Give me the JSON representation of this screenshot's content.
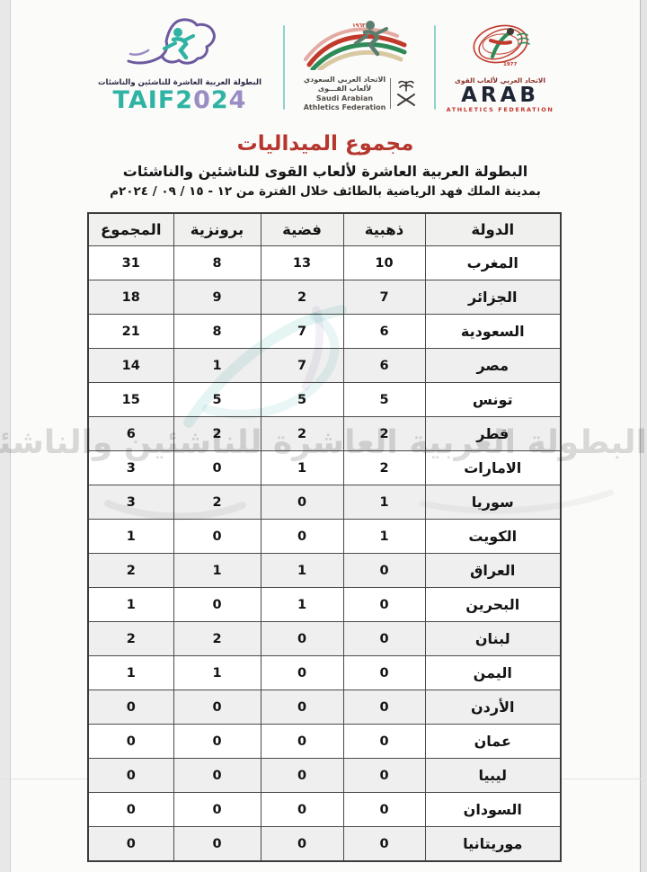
{
  "document": {
    "title": "مجموع الميداليات",
    "subtitle": "البطولة العربية العاشرة لألعاب القوى للناشئين والناشئات",
    "venue_date_line": "بمدينة الملك فهد الرياضية بالطائف خلال الفترة من ١٢ - ١٥ / ٠٩ / ٢٠٢٤م",
    "title_color": "#b5362d"
  },
  "logos": {
    "taif": {
      "tagline": "البطولة العربية العاشرة للناشئين والناشئات",
      "wordmark": "TAIF2024",
      "wordmark_letters": [
        {
          "char": "T",
          "color": "#2fb3a3"
        },
        {
          "char": "A",
          "color": "#2fb3a3"
        },
        {
          "char": "I",
          "color": "#2fb3a3"
        },
        {
          "char": "F",
          "color": "#2fb3a3"
        },
        {
          "char": "2",
          "color": "#2fb3a3"
        },
        {
          "char": "0",
          "color": "#9b8cc4"
        },
        {
          "char": "2",
          "color": "#2fb3a3"
        },
        {
          "char": "4",
          "color": "#9b8cc4"
        }
      ],
      "teal": "#2fb3a3",
      "purple": "#7f6aaa"
    },
    "saudi_athletics_federation": {
      "arabic_line1": "الاتحاد العربي السعودي",
      "arabic_line2": "لألعاب القـــوى",
      "english_line1": "Saudi Arabian",
      "english_line2": "Athletics Federation"
    },
    "arab_athletics_federation": {
      "arabic_line": "الاتحاد العربي لألعاب القوى",
      "wordmark": "ARAB",
      "sub_wordmark": "ATHLETICS FEDERATION",
      "accent_red": "#c2352b",
      "navy": "#1d2433"
    }
  },
  "watermark_text": "البطولة العربية العاشرة للناشئين والناشئات",
  "medal_table": {
    "headers": {
      "country": "الدولة",
      "gold": "ذهبية",
      "silver": "فضية",
      "bronze": "برونزية",
      "total": "المجموع"
    },
    "rows": [
      {
        "country": "المغرب",
        "gold": "10",
        "silver": "13",
        "bronze": "8",
        "total": "31"
      },
      {
        "country": "الجزائر",
        "gold": "7",
        "silver": "2",
        "bronze": "9",
        "total": "18"
      },
      {
        "country": "السعودية",
        "gold": "6",
        "silver": "7",
        "bronze": "8",
        "total": "21"
      },
      {
        "country": "مصر",
        "gold": "6",
        "silver": "7",
        "bronze": "1",
        "total": "14"
      },
      {
        "country": "تونس",
        "gold": "5",
        "silver": "5",
        "bronze": "5",
        "total": "15"
      },
      {
        "country": "قطر",
        "gold": "2",
        "silver": "2",
        "bronze": "2",
        "total": "6"
      },
      {
        "country": "الامارات",
        "gold": "2",
        "silver": "1",
        "bronze": "0",
        "total": "3"
      },
      {
        "country": "سوريا",
        "gold": "1",
        "silver": "0",
        "bronze": "2",
        "total": "3"
      },
      {
        "country": "الكويت",
        "gold": "1",
        "silver": "0",
        "bronze": "0",
        "total": "1"
      },
      {
        "country": "العراق",
        "gold": "0",
        "silver": "1",
        "bronze": "1",
        "total": "2"
      },
      {
        "country": "البحرين",
        "gold": "0",
        "silver": "1",
        "bronze": "0",
        "total": "1"
      },
      {
        "country": "لبنان",
        "gold": "0",
        "silver": "0",
        "bronze": "2",
        "total": "2"
      },
      {
        "country": "اليمن",
        "gold": "0",
        "silver": "0",
        "bronze": "1",
        "total": "1"
      },
      {
        "country": "الأردن",
        "gold": "0",
        "silver": "0",
        "bronze": "0",
        "total": "0"
      },
      {
        "country": "عمان",
        "gold": "0",
        "silver": "0",
        "bronze": "0",
        "total": "0"
      },
      {
        "country": "ليبيا",
        "gold": "0",
        "silver": "0",
        "bronze": "0",
        "total": "0"
      },
      {
        "country": "السودان",
        "gold": "0",
        "silver": "0",
        "bronze": "0",
        "total": "0"
      },
      {
        "country": "موريتانيا",
        "gold": "0",
        "silver": "0",
        "bronze": "0",
        "total": "0"
      }
    ]
  }
}
